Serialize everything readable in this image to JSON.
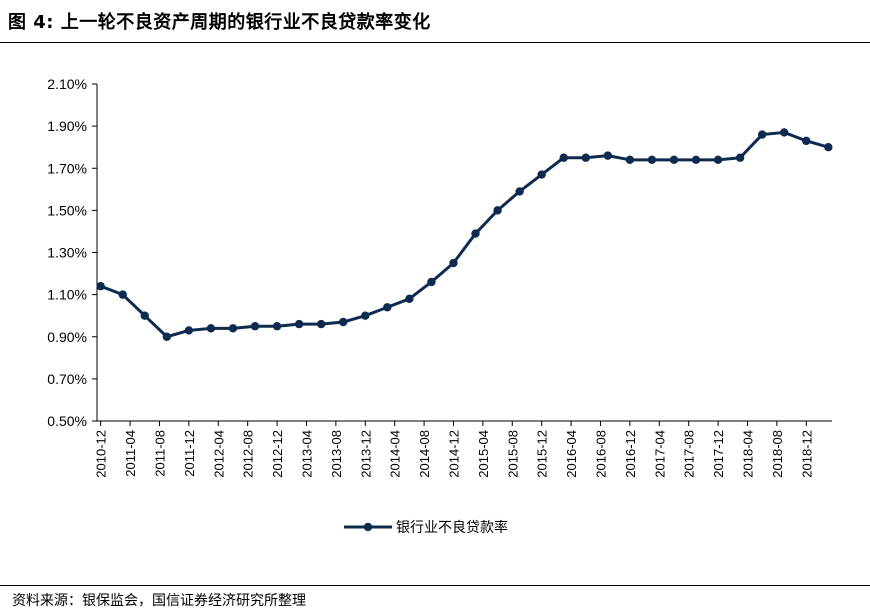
{
  "figure": {
    "title": "图 4:  上一轮不良资产周期的银行业不良贷款率变化",
    "source": "资料来源：银保监会，国信证券经济研究所整理"
  },
  "colors": {
    "series": "#0f2a4f",
    "axis": "#000000"
  },
  "chart_data": {
    "type": "line",
    "title": "",
    "xlabel": "",
    "ylabel": "",
    "ylim": [
      0.5,
      2.1
    ],
    "y_ticks": [
      "0.50%",
      "0.70%",
      "0.90%",
      "1.10%",
      "1.30%",
      "1.50%",
      "1.70%",
      "1.90%",
      "2.10%"
    ],
    "x_ticks": [
      "2010-12",
      "2011-04",
      "2011-08",
      "2011-12",
      "2012-04",
      "2012-08",
      "2012-12",
      "2013-04",
      "2013-08",
      "2013-12",
      "2014-04",
      "2014-08",
      "2014-12",
      "2015-04",
      "2015-08",
      "2015-12",
      "2016-04",
      "2016-08",
      "2016-12",
      "2017-04",
      "2017-08",
      "2017-12",
      "2018-04",
      "2018-08",
      "2018-12"
    ],
    "grid": false,
    "legend_position": "bottom-center",
    "series": [
      {
        "name": "银行业不良贷款率",
        "x": [
          "2010-12",
          "2011-03",
          "2011-06",
          "2011-09",
          "2011-12",
          "2012-03",
          "2012-06",
          "2012-09",
          "2012-12",
          "2013-03",
          "2013-06",
          "2013-09",
          "2013-12",
          "2014-03",
          "2014-06",
          "2014-09",
          "2014-12",
          "2015-03",
          "2015-06",
          "2015-09",
          "2015-12",
          "2016-03",
          "2016-06",
          "2016-09",
          "2016-12",
          "2017-03",
          "2017-06",
          "2017-09",
          "2017-12",
          "2018-03",
          "2018-06",
          "2018-09",
          "2018-12",
          "2019-03"
        ],
        "values": [
          1.14,
          1.1,
          1.0,
          0.9,
          0.93,
          0.94,
          0.94,
          0.95,
          0.95,
          0.96,
          0.96,
          0.97,
          1.0,
          1.04,
          1.08,
          1.16,
          1.25,
          1.39,
          1.5,
          1.59,
          1.67,
          1.75,
          1.75,
          1.76,
          1.74,
          1.74,
          1.74,
          1.74,
          1.74,
          1.75,
          1.86,
          1.87,
          1.83,
          1.8
        ]
      }
    ]
  }
}
